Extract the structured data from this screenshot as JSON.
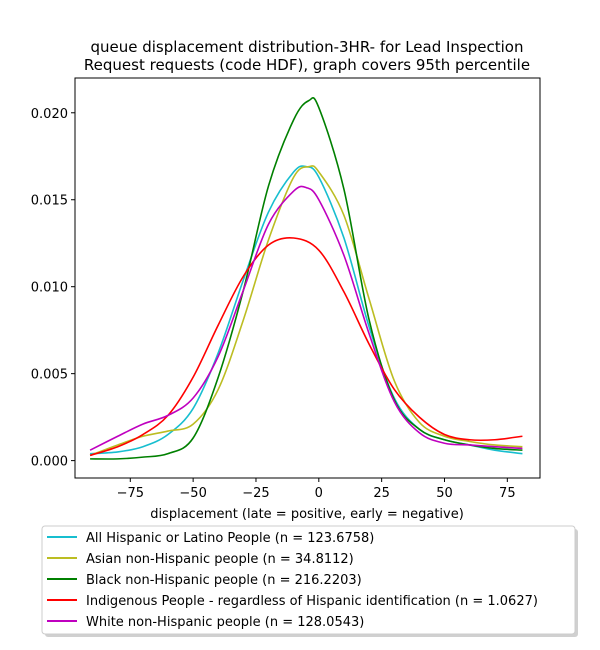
{
  "chart_data": {
    "type": "line",
    "title": [
      "queue displacement distribution-3HR-  for Lead Inspection",
      "Request  requests (code HDF), graph covers 95th percentile"
    ],
    "xlabel": "displacement (late = positive, early = negative)",
    "ylabel": "",
    "xlim": [
      -97,
      88
    ],
    "ylim": [
      -0.001,
      0.022
    ],
    "xticks": [
      -75,
      -50,
      -25,
      0,
      25,
      50,
      75
    ],
    "xtick_labels": [
      "−75",
      "−50",
      "−25",
      "0",
      "25",
      "50",
      "75"
    ],
    "yticks": [
      0.0,
      0.005,
      0.01,
      0.015,
      0.02
    ],
    "ytick_labels": [
      "0.000",
      "0.005",
      "0.010",
      "0.015",
      "0.020"
    ],
    "grid": false,
    "legend_position": "below",
    "series": [
      {
        "name": "All Hispanic or Latino People (n = 123.6758)",
        "color": "#17becf",
        "points": [
          [
            -91,
            0.0004
          ],
          [
            -80,
            0.0005
          ],
          [
            -70,
            0.0008
          ],
          [
            -60,
            0.0015
          ],
          [
            -50,
            0.003
          ],
          [
            -40,
            0.0062
          ],
          [
            -30,
            0.0104
          ],
          [
            -20,
            0.0143
          ],
          [
            -10,
            0.0166
          ],
          [
            -5,
            0.0169
          ],
          [
            0,
            0.0163
          ],
          [
            10,
            0.0128
          ],
          [
            20,
            0.0077
          ],
          [
            30,
            0.0036
          ],
          [
            40,
            0.0018
          ],
          [
            50,
            0.0012
          ],
          [
            60,
            0.0009
          ],
          [
            70,
            0.0006
          ],
          [
            81,
            0.0004
          ]
        ]
      },
      {
        "name": "Asian non-Hispanic people (n = 34.8112)",
        "color": "#bcbd22",
        "points": [
          [
            -91,
            0.0003
          ],
          [
            -80,
            0.0009
          ],
          [
            -70,
            0.0014
          ],
          [
            -60,
            0.0017
          ],
          [
            -50,
            0.0021
          ],
          [
            -40,
            0.0041
          ],
          [
            -30,
            0.0081
          ],
          [
            -20,
            0.0127
          ],
          [
            -10,
            0.0163
          ],
          [
            -4,
            0.0169
          ],
          [
            0,
            0.0166
          ],
          [
            10,
            0.0141
          ],
          [
            20,
            0.0093
          ],
          [
            30,
            0.0046
          ],
          [
            40,
            0.0022
          ],
          [
            50,
            0.0014
          ],
          [
            60,
            0.0011
          ],
          [
            70,
            0.0009
          ],
          [
            81,
            0.0008
          ]
        ]
      },
      {
        "name": "Black non-Hispanic people (n = 216.2203)",
        "color": "#008000",
        "points": [
          [
            -91,
            0.0001
          ],
          [
            -80,
            0.0001
          ],
          [
            -70,
            0.0002
          ],
          [
            -60,
            0.0004
          ],
          [
            -50,
            0.0013
          ],
          [
            -40,
            0.0048
          ],
          [
            -30,
            0.0098
          ],
          [
            -20,
            0.0158
          ],
          [
            -10,
            0.0196
          ],
          [
            -4,
            0.0207
          ],
          [
            0,
            0.0203
          ],
          [
            10,
            0.0156
          ],
          [
            20,
            0.0081
          ],
          [
            30,
            0.0035
          ],
          [
            40,
            0.0018
          ],
          [
            50,
            0.0012
          ],
          [
            60,
            0.0009
          ],
          [
            70,
            0.0007
          ],
          [
            81,
            0.0006
          ]
        ]
      },
      {
        "name": "Indigenous People - regardless of Hispanic identification (n = 1.0627)",
        "color": "#ff0000",
        "points": [
          [
            -91,
            0.0003
          ],
          [
            -80,
            0.0008
          ],
          [
            -70,
            0.0015
          ],
          [
            -60,
            0.0026
          ],
          [
            -50,
            0.0048
          ],
          [
            -40,
            0.0078
          ],
          [
            -30,
            0.0106
          ],
          [
            -20,
            0.0124
          ],
          [
            -10,
            0.0128
          ],
          [
            0,
            0.0121
          ],
          [
            10,
            0.0097
          ],
          [
            20,
            0.0067
          ],
          [
            30,
            0.0041
          ],
          [
            40,
            0.0025
          ],
          [
            50,
            0.0015
          ],
          [
            60,
            0.0012
          ],
          [
            70,
            0.0012
          ],
          [
            81,
            0.0014
          ]
        ]
      },
      {
        "name": "White non-Hispanic people (n = 128.0543)",
        "color": "#bf00bf",
        "points": [
          [
            -91,
            0.0006
          ],
          [
            -80,
            0.0014
          ],
          [
            -70,
            0.0021
          ],
          [
            -60,
            0.0026
          ],
          [
            -50,
            0.0036
          ],
          [
            -40,
            0.006
          ],
          [
            -30,
            0.0098
          ],
          [
            -20,
            0.0136
          ],
          [
            -10,
            0.0155
          ],
          [
            -5,
            0.0157
          ],
          [
            0,
            0.015
          ],
          [
            10,
            0.0118
          ],
          [
            20,
            0.0073
          ],
          [
            30,
            0.0034
          ],
          [
            40,
            0.0016
          ],
          [
            50,
            0.001
          ],
          [
            60,
            0.0009
          ],
          [
            70,
            0.0008
          ],
          [
            81,
            0.0007
          ]
        ]
      }
    ]
  }
}
